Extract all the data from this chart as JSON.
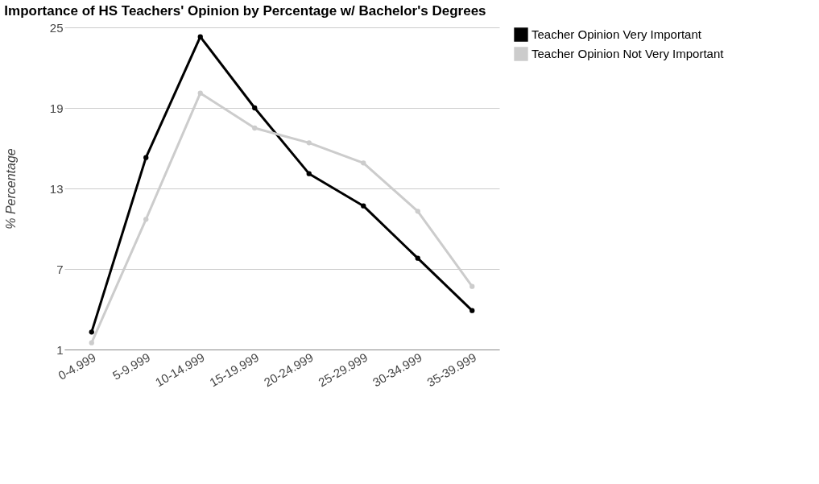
{
  "chart_data": {
    "type": "line",
    "title": "Importance of HS Teachers' Opinion by Percentage w/ Bachelor's Degrees",
    "ylabel": "% Percentage",
    "categories": [
      "0-4.999",
      "5-9.999",
      "10-14.999",
      "15-19.999",
      "20-24.999",
      "25-29.999",
      "30-34.999",
      "35-39.999"
    ],
    "series": [
      {
        "name": "Teacher Opinion Very Important",
        "color": "#000000",
        "values": [
          2.3,
          15.3,
          24.3,
          19.0,
          14.1,
          11.7,
          7.8,
          3.9
        ]
      },
      {
        "name": "Teacher Opinion Not Very Important",
        "color": "#cccccc",
        "values": [
          1.5,
          10.7,
          20.1,
          17.5,
          16.4,
          14.9,
          11.3,
          5.7
        ]
      }
    ],
    "ylim": [
      1,
      25
    ],
    "yticks": [
      1,
      7,
      13,
      19,
      25
    ],
    "grid": "y",
    "legend": "right",
    "marker": "circle",
    "line_style": "solid"
  }
}
